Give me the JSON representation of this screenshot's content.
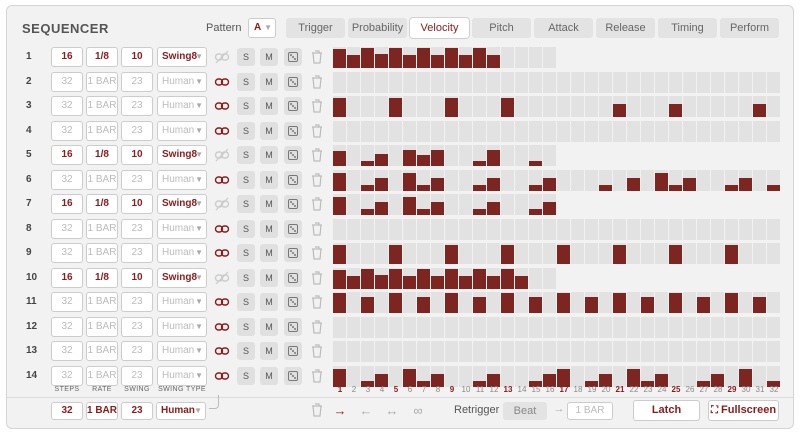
{
  "app": {
    "title": "SEQUENCER"
  },
  "pattern": {
    "label": "Pattern",
    "value": "A"
  },
  "tabs": [
    {
      "label": "Trigger"
    },
    {
      "label": "Probability"
    },
    {
      "label": "Velocity",
      "active": true
    },
    {
      "label": "Pitch"
    },
    {
      "label": "Attack"
    },
    {
      "label": "Release"
    },
    {
      "label": "Timing"
    },
    {
      "label": "Perform"
    }
  ],
  "buttons": {
    "solo": "S",
    "mute": "M"
  },
  "rows": [
    {
      "num": "1",
      "steps": "16",
      "rate": "1/8",
      "swing": "10",
      "type": "Swing8",
      "active": true
    },
    {
      "num": "2",
      "steps": "32",
      "rate": "1 BAR",
      "swing": "23",
      "type": "Human",
      "active": false
    },
    {
      "num": "3",
      "steps": "32",
      "rate": "1 BAR",
      "swing": "23",
      "type": "Human",
      "active": false
    },
    {
      "num": "4",
      "steps": "32",
      "rate": "1 BAR",
      "swing": "23",
      "type": "Human",
      "active": false
    },
    {
      "num": "5",
      "steps": "16",
      "rate": "1/8",
      "swing": "10",
      "type": "Swing8",
      "active": true
    },
    {
      "num": "6",
      "steps": "32",
      "rate": "1 BAR",
      "swing": "23",
      "type": "Human",
      "active": false
    },
    {
      "num": "7",
      "steps": "16",
      "rate": "1/8",
      "swing": "10",
      "type": "Swing8",
      "active": true
    },
    {
      "num": "8",
      "steps": "32",
      "rate": "1 BAR",
      "swing": "23",
      "type": "Human",
      "active": false
    },
    {
      "num": "9",
      "steps": "32",
      "rate": "1 BAR",
      "swing": "23",
      "type": "Human",
      "active": false
    },
    {
      "num": "10",
      "steps": "16",
      "rate": "1/8",
      "swing": "10",
      "type": "Swing8",
      "active": true
    },
    {
      "num": "11",
      "steps": "32",
      "rate": "1 BAR",
      "swing": "23",
      "type": "Human",
      "active": false
    },
    {
      "num": "12",
      "steps": "32",
      "rate": "1 BAR",
      "swing": "23",
      "type": "Human",
      "active": false
    },
    {
      "num": "13",
      "steps": "32",
      "rate": "1 BAR",
      "swing": "23",
      "type": "Human",
      "active": false
    },
    {
      "num": "14",
      "steps": "32",
      "rate": "1 BAR",
      "swing": "23",
      "type": "Human",
      "active": false
    }
  ],
  "velocity_pattern_16": {
    "1": [
      0.9,
      0.6,
      0.95,
      0.65,
      0.95,
      0.6,
      0.95,
      0.6,
      0.95,
      0.6,
      0.95,
      0.6,
      0,
      0,
      0,
      0
    ],
    "5": [
      0.7,
      0,
      0.25,
      0.55,
      0,
      0.75,
      0.5,
      0.75,
      0,
      0,
      0.25,
      0.75,
      0,
      0,
      0.25,
      0
    ]
  },
  "columns": {
    "steps": "STEPS",
    "rate": "RATE",
    "swing": "SWING",
    "swing_type": "SWING TYPE"
  },
  "step_numbers": [
    "1",
    "2",
    "3",
    "4",
    "5",
    "6",
    "7",
    "8",
    "9",
    "10",
    "11",
    "12",
    "13",
    "14",
    "15",
    "16",
    "17",
    "18",
    "19",
    "20",
    "21",
    "22",
    "23",
    "24",
    "25",
    "26",
    "27",
    "28",
    "29",
    "30",
    "31",
    "32"
  ],
  "footer": {
    "steps": "32",
    "rate": "1 BAR",
    "swing": "23",
    "type": "Human",
    "retrigger_label": "Retrigger",
    "retrigger_value": "Beat",
    "retrigger_rate": "1 BAR",
    "latch": "Latch",
    "fullscreen": "Fullscreen"
  },
  "colors": {
    "accent": "#8b1a1a",
    "bar": "#7d2521",
    "cell": "#e2e2e2"
  }
}
